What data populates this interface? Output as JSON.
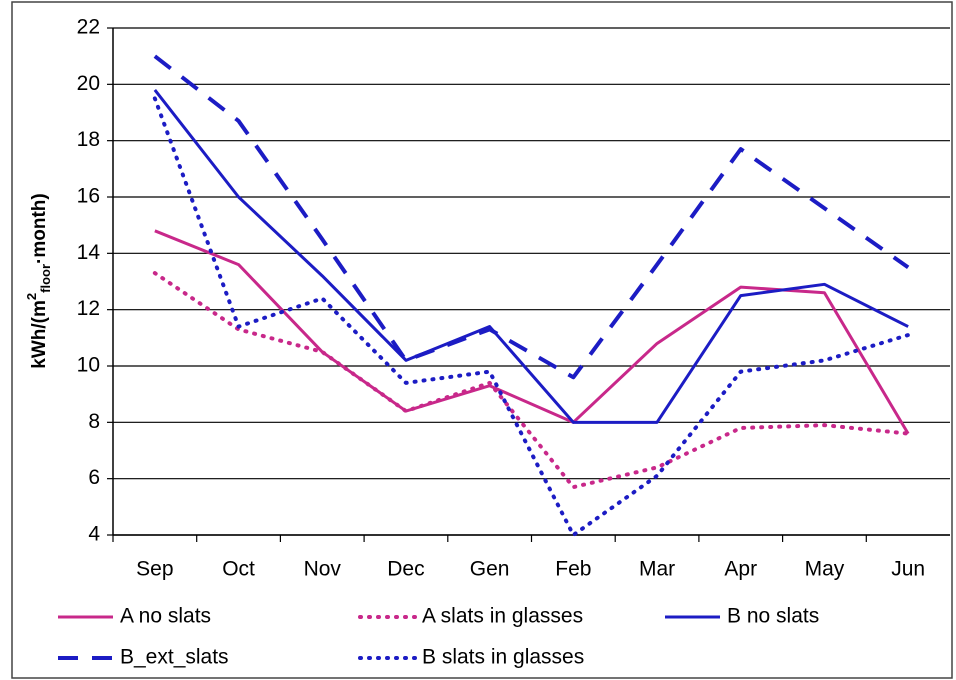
{
  "chart_data": {
    "type": "line",
    "y_label": [
      "kWh/(m",
      "2",
      "floor",
      "·month)"
    ],
    "categories": [
      "Sep",
      "Oct",
      "Nov",
      "Dec",
      "Gen",
      "Feb",
      "Mar",
      "Apr",
      "May",
      "Jun"
    ],
    "series": [
      {
        "name": "A no slats",
        "color": "#c8288a",
        "style": "solid",
        "values": [
          14.8,
          13.6,
          10.5,
          8.4,
          9.3,
          8.0,
          10.8,
          12.8,
          12.6,
          7.6
        ]
      },
      {
        "name": "A slats in glasses",
        "color": "#c8288a",
        "style": "dotted",
        "values": [
          13.3,
          11.3,
          10.5,
          8.4,
          9.4,
          5.7,
          6.4,
          7.8,
          7.9,
          7.6
        ]
      },
      {
        "name": "B no slats",
        "color": "#1c1cc4",
        "style": "solid",
        "values": [
          19.8,
          16.0,
          13.2,
          10.2,
          11.4,
          8.0,
          8.0,
          12.5,
          12.9,
          11.4
        ]
      },
      {
        "name": "B_ext_slats",
        "color": "#1c1cc4",
        "style": "dashed",
        "values": [
          21.0,
          18.7,
          14.5,
          10.2,
          11.3,
          9.6,
          13.6,
          17.7,
          15.6,
          13.5
        ]
      },
      {
        "name": "B slats in glasses",
        "color": "#1c1cc4",
        "style": "dotted",
        "values": [
          19.5,
          11.4,
          12.4,
          9.4,
          9.8,
          4.0,
          6.1,
          9.8,
          10.2,
          11.1
        ]
      }
    ],
    "ylim": [
      4,
      22
    ],
    "yticks": [
      4,
      6,
      8,
      10,
      12,
      14,
      16,
      18,
      20,
      22
    ],
    "grid": true
  }
}
